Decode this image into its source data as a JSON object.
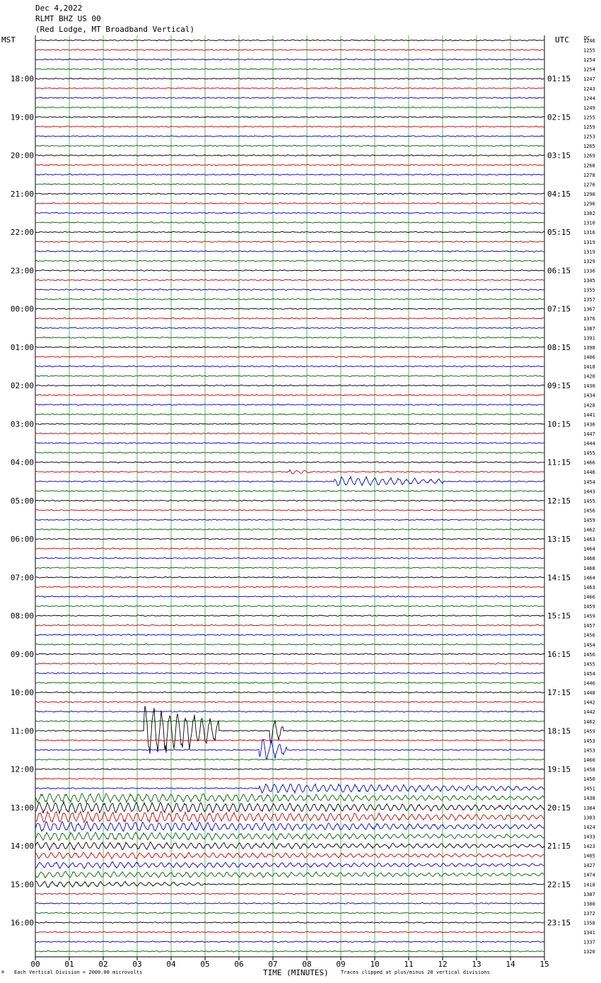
{
  "header": {
    "date": "Dec 4,2022",
    "station": "RLMT BHZ US 00",
    "location": "(Red Lodge, MT Broadband Vertical)"
  },
  "labels": {
    "left_tz": "MST",
    "right_tz": "UTC",
    "dc_label": "DC",
    "xlabel": "TIME (MINUTES)",
    "scale_note": "Each Vertical Division = 2000.00 microvolts",
    "clip_note": "Traces clipped at plus/minus 20 vertical divisions"
  },
  "colors": {
    "trace_cycle": [
      "#000000",
      "#cc0000",
      "#0000cc",
      "#006600"
    ],
    "grid": "#008000",
    "frame": "#000000"
  },
  "chart_data": {
    "type": "line",
    "title": "RLMT BHZ US 00",
    "subtitle": "(Red Lodge, MT Broadband Vertical)",
    "xlabel": "TIME (MINUTES)",
    "xlim": [
      0,
      15
    ],
    "x_ticks": [
      "00",
      "01",
      "02",
      "03",
      "04",
      "05",
      "06",
      "07",
      "08",
      "09",
      "10",
      "11",
      "12",
      "13",
      "14",
      "15"
    ],
    "trace_minutes_per_line": 15,
    "left_hour_labels": [
      "18:00",
      "19:00",
      "20:00",
      "21:00",
      "22:00",
      "23:00",
      "00:00",
      "01:00",
      "02:00",
      "03:00",
      "04:00",
      "05:00",
      "06:00",
      "07:00",
      "08:00",
      "09:00",
      "10:00",
      "11:00",
      "12:00",
      "13:00",
      "14:00",
      "15:00",
      "16:00"
    ],
    "right_hour_labels": [
      "01:15",
      "02:15",
      "03:15",
      "04:15",
      "05:15",
      "06:15",
      "07:15",
      "08:15",
      "09:15",
      "10:15",
      "11:15",
      "12:15",
      "13:15",
      "14:15",
      "15:15",
      "16:15",
      "17:15",
      "18:15",
      "19:15",
      "20:15",
      "21:15",
      "22:15",
      "23:15"
    ],
    "dc_offsets": [
      1246,
      1255,
      1254,
      1254,
      1247,
      1243,
      1244,
      1249,
      1255,
      1259,
      1253,
      1265,
      1269,
      1268,
      1278,
      1276,
      1290,
      1296,
      1302,
      1310,
      1316,
      1319,
      1319,
      1329,
      1336,
      1345,
      1355,
      1357,
      1367,
      1376,
      1387,
      1391,
      1398,
      1406,
      1418,
      1420,
      1430,
      1434,
      1428,
      1441,
      1436,
      1447,
      1444,
      1455,
      1466,
      1446,
      1454,
      1443,
      1455,
      1456,
      1459,
      1462,
      1463,
      1464,
      1468,
      1468,
      1464,
      1463,
      1466,
      1459,
      1459,
      1457,
      1456,
      1454,
      1456,
      1455,
      1454,
      1446,
      1448,
      1442,
      1442,
      1462,
      1459,
      1453,
      1453,
      1460,
      1458,
      1450,
      1451,
      1438,
      1384,
      1303,
      1424,
      1433,
      1423,
      1405,
      1427,
      1474,
      1418,
      1387,
      1380,
      1372,
      1358,
      1341,
      1337,
      1320
    ],
    "events": [
      {
        "trace": 45,
        "start_min": 7.5,
        "end_min": 8.1,
        "amplitude": 0.8
      },
      {
        "trace": 46,
        "start_min": 8.8,
        "end_min": 12.0,
        "amplitude": 1.6
      },
      {
        "trace": 72,
        "start_min": 3.2,
        "end_min": 5.4,
        "amplitude": 9.0
      },
      {
        "trace": 72,
        "start_min": 6.9,
        "end_min": 7.3,
        "amplitude": 5.0
      },
      {
        "trace": 74,
        "start_min": 6.6,
        "end_min": 7.4,
        "amplitude": 4.0
      },
      {
        "trace": 78,
        "start_min": 6.6,
        "end_min": 15.0,
        "amplitude": 1.5
      },
      {
        "trace": 79,
        "start_min": 0.0,
        "end_min": 15.0,
        "amplitude": 1.5
      },
      {
        "trace": 80,
        "start_min": 0.0,
        "end_min": 15.0,
        "amplitude": 1.8
      },
      {
        "trace": 81,
        "start_min": 0.0,
        "end_min": 15.0,
        "amplitude": 1.8
      },
      {
        "trace": 82,
        "start_min": 0.0,
        "end_min": 15.0,
        "amplitude": 1.6
      },
      {
        "trace": 83,
        "start_min": 0.0,
        "end_min": 15.0,
        "amplitude": 1.3
      },
      {
        "trace": 84,
        "start_min": 0.0,
        "end_min": 15.0,
        "amplitude": 1.2
      },
      {
        "trace": 85,
        "start_min": 0.0,
        "end_min": 15.0,
        "amplitude": 1.0
      },
      {
        "trace": 86,
        "start_min": 0.0,
        "end_min": 15.0,
        "amplitude": 1.0
      },
      {
        "trace": 87,
        "start_min": 0.0,
        "end_min": 15.0,
        "amplitude": 1.0
      },
      {
        "trace": 88,
        "start_min": 0.0,
        "end_min": 5.0,
        "amplitude": 1.0
      }
    ]
  }
}
